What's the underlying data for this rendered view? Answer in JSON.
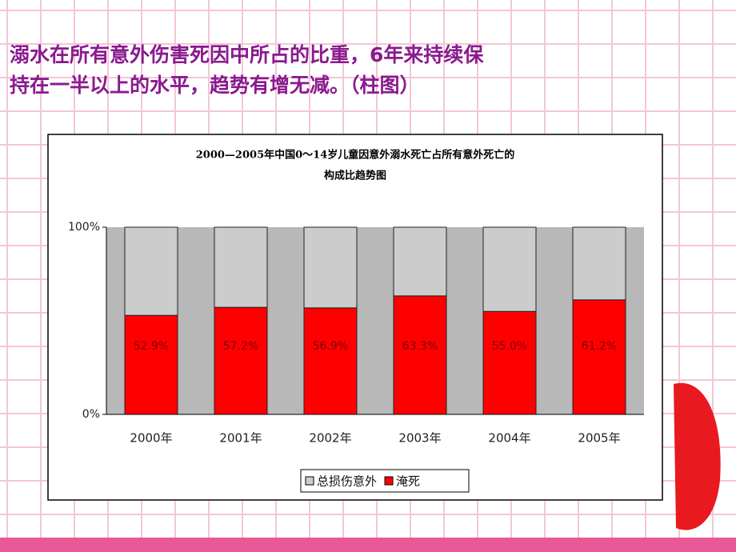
{
  "heading": [
    "溺水在所有意外伤害死因中所占的比重，6年来持续保",
    "持在一半以上的水平，趋势有增无减。（柱图）"
  ],
  "chart_data": {
    "type": "bar",
    "stacked": true,
    "title": [
      "2000—2005年中国0～14岁儿童因意外溺水死亡占所有意外死亡的",
      "构成比趋势图"
    ],
    "categories": [
      "2000年",
      "2001年",
      "2002年",
      "2003年",
      "2004年",
      "2005年"
    ],
    "series": [
      {
        "name": "淹死",
        "color": "#ff0000",
        "values": [
          52.9,
          57.2,
          56.9,
          63.3,
          55.0,
          61.2
        ],
        "value_labels": [
          "52.9%",
          "57.2%",
          "56.9%",
          "63.3%",
          "55.0%",
          "61.2%"
        ]
      },
      {
        "name": "总损伤意外",
        "color": "#cccccc",
        "values": [
          47.1,
          42.8,
          43.1,
          36.7,
          45.0,
          38.8
        ]
      }
    ],
    "ylim": [
      0,
      100
    ],
    "yticks": [
      {
        "value": 0,
        "label": "0%"
      },
      {
        "value": 100,
        "label": "100%"
      }
    ],
    "legend": "bottom"
  }
}
